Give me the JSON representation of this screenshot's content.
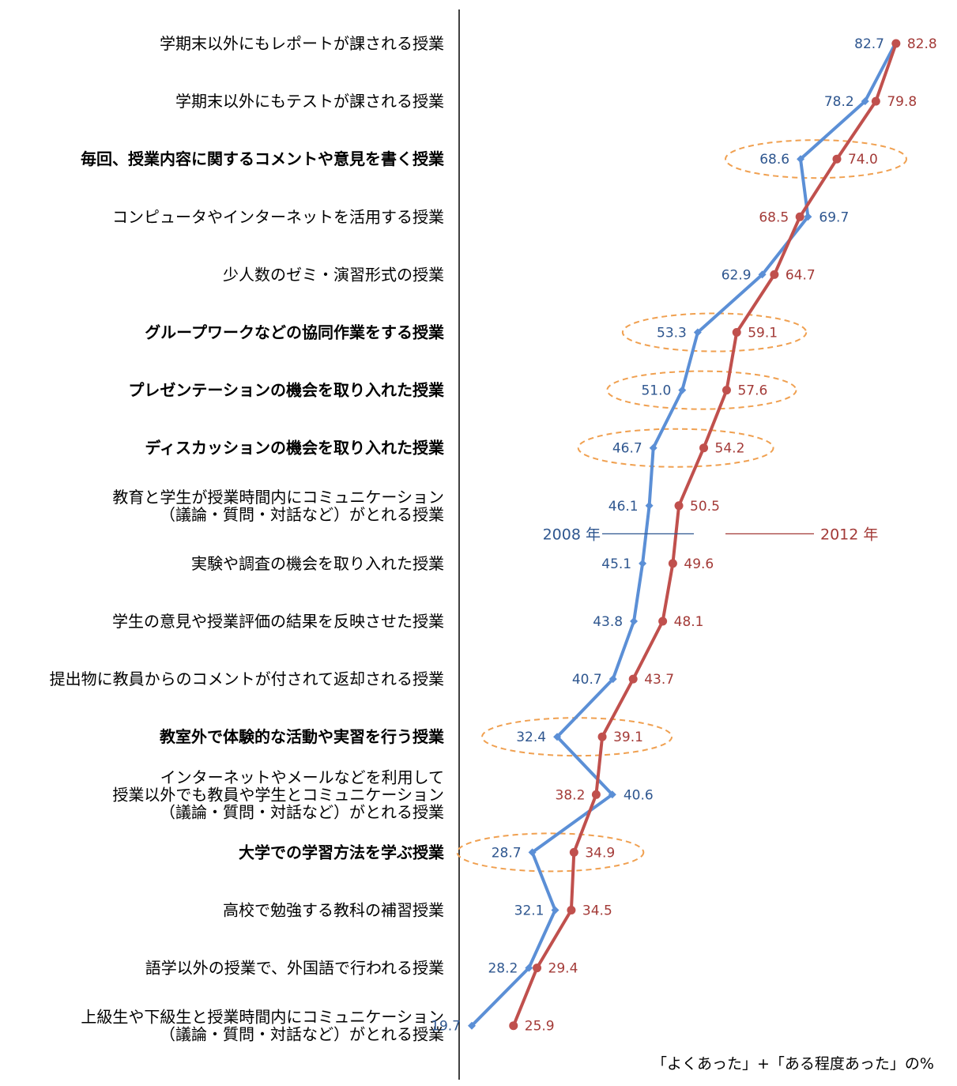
{
  "chart_data": {
    "type": "line",
    "note": "「よくあった」+「ある程度あった」の%",
    "categories": [
      {
        "lines": [
          "学期末以外にもレポートが課される授業"
        ],
        "bold": false
      },
      {
        "lines": [
          "学期末以外にもテストが課される授業"
        ],
        "bold": false
      },
      {
        "lines": [
          "毎回、授業内容に関するコメントや意見を書く授業"
        ],
        "bold": true
      },
      {
        "lines": [
          "コンピュータやインターネットを活用する授業"
        ],
        "bold": false
      },
      {
        "lines": [
          "少人数のゼミ・演習形式の授業"
        ],
        "bold": false
      },
      {
        "lines": [
          "グループワークなどの協同作業をする授業"
        ],
        "bold": true
      },
      {
        "lines": [
          "プレゼンテーションの機会を取り入れた授業"
        ],
        "bold": true
      },
      {
        "lines": [
          "ディスカッションの機会を取り入れた授業"
        ],
        "bold": true
      },
      {
        "lines": [
          "教育と学生が授業時間内にコミュニケーション",
          "（議論・質問・対話など）がとれる授業"
        ],
        "bold": false
      },
      {
        "lines": [
          "実験や調査の機会を取り入れた授業"
        ],
        "bold": false
      },
      {
        "lines": [
          "学生の意見や授業評価の結果を反映させた授業"
        ],
        "bold": false
      },
      {
        "lines": [
          "提出物に教員からのコメントが付されて返却される授業"
        ],
        "bold": false
      },
      {
        "lines": [
          "教室外で体験的な活動や実習を行う授業"
        ],
        "bold": true
      },
      {
        "lines": [
          "インターネットやメールなどを利用して",
          "授業以外でも教員や学生とコミュニケーション",
          "（議論・質問・対話など）がとれる授業"
        ],
        "bold": false
      },
      {
        "lines": [
          "大学での学習方法を学ぶ授業"
        ],
        "bold": true
      },
      {
        "lines": [
          "高校で勉強する教科の補習授業"
        ],
        "bold": false
      },
      {
        "lines": [
          "語学以外の授業で、外国語で行われる授業"
        ],
        "bold": false
      },
      {
        "lines": [
          "上級生や下級生と授業時間内にコミュニケーション",
          "（議論・質問・対話など）がとれる授業"
        ],
        "bold": false
      }
    ],
    "series": [
      {
        "name": "2008 年",
        "color": "#5b8fd6",
        "label_color": "#2e568f",
        "marker": "diamond",
        "values": [
          82.7,
          78.2,
          68.6,
          69.7,
          62.9,
          53.3,
          51.0,
          46.7,
          46.1,
          45.1,
          43.8,
          40.7,
          32.4,
          40.6,
          28.7,
          32.1,
          28.2,
          19.7
        ]
      },
      {
        "name": "2012 年",
        "color": "#c0504d",
        "label_color": "#a33a37",
        "marker": "circle",
        "values": [
          82.8,
          79.8,
          74.0,
          68.5,
          64.7,
          59.1,
          57.6,
          54.2,
          50.5,
          49.6,
          48.1,
          43.7,
          39.1,
          38.2,
          34.9,
          34.5,
          29.4,
          25.9
        ]
      }
    ],
    "highlighted_categories": [
      2,
      5,
      6,
      7,
      12,
      14
    ],
    "highlight_color": "#f0a050",
    "grid": false
  }
}
